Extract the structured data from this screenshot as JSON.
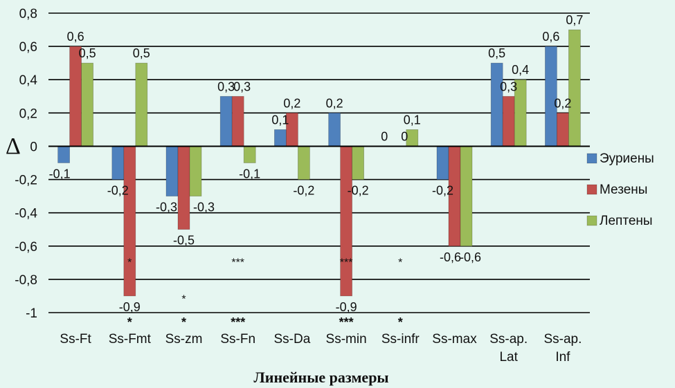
{
  "chart_data": {
    "type": "bar",
    "title": "",
    "xlabel": "Линейные размеры",
    "ylabel": "Δ",
    "ylim": [
      -1,
      0.8
    ],
    "yticks": [
      "0,8",
      "0,6",
      "0,4",
      "0,2",
      "0",
      "-0,2",
      "-0,4",
      "-0,6",
      "-0,8",
      "-1"
    ],
    "ytick_values": [
      0.8,
      0.6,
      0.4,
      0.2,
      0,
      -0.2,
      -0.4,
      -0.6,
      -0.8,
      -1
    ],
    "grid": true,
    "legend_position": "right",
    "categories": [
      "Ss-Ft",
      "Ss-Fmt",
      "Ss-zm",
      "Ss-Fn",
      "Ss-Da",
      "Ss-min",
      "Ss-infr",
      "Ss-max",
      "Ss-ap. Lat",
      "Ss-ap. Inf"
    ],
    "series": [
      {
        "name": "Эуриены",
        "color": "#4f81bd",
        "values": [
          -0.1,
          -0.2,
          -0.3,
          0.3,
          0.1,
          0.2,
          0,
          -0.2,
          0.5,
          0.6
        ],
        "labels": [
          "-0,1",
          "-0,2",
          "-0,3",
          "0,3",
          "0,1",
          "0,2",
          "0",
          "-0,2",
          "0,5",
          "0,6"
        ]
      },
      {
        "name": "Мезены",
        "color": "#c0504d",
        "values": [
          0.6,
          -0.9,
          -0.5,
          0.3,
          0.2,
          -0.9,
          0,
          -0.6,
          0.3,
          0.2
        ],
        "labels": [
          "0,6",
          "-0,9",
          "-0,5",
          "0,3",
          "0,2",
          "-0,9",
          "0",
          "-0,6",
          "0,3",
          "0,2"
        ]
      },
      {
        "name": "Лептены",
        "color": "#9bbb59",
        "values": [
          0.5,
          0.5,
          -0.3,
          -0.1,
          -0.2,
          -0.2,
          0.1,
          -0.6,
          0.4,
          0.7
        ],
        "labels": [
          "0,5",
          "0,5",
          "-0,3",
          "-0,1",
          "-0,2",
          "-0,2",
          "0,1",
          "-0,6",
          "0,4",
          "0,7"
        ]
      }
    ],
    "annotations_in_plot": [
      {
        "category": "Ss-Fmt",
        "text": "*",
        "y": -0.72
      },
      {
        "category": "Ss-zm",
        "text": "*",
        "y": -0.94
      },
      {
        "category": "Ss-Fn",
        "text": "***",
        "y": -0.72
      },
      {
        "category": "Ss-min",
        "text": "***",
        "y": -0.72
      },
      {
        "category": "Ss-infr",
        "text": "*",
        "y": -0.72
      }
    ],
    "annotations_below_axis": [
      {
        "category": "Ss-Fmt",
        "text": "*"
      },
      {
        "category": "Ss-zm",
        "text": "*"
      },
      {
        "category": "Ss-Fn",
        "text": "***"
      },
      {
        "category": "Ss-min",
        "text": "***"
      },
      {
        "category": "Ss-infr",
        "text": "*"
      }
    ]
  }
}
